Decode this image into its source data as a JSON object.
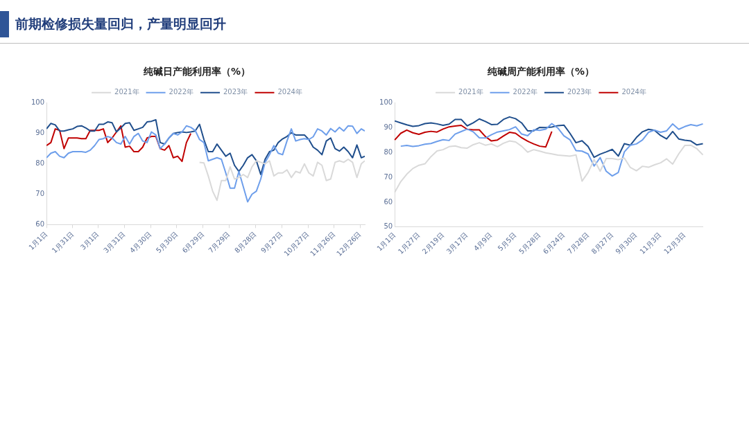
{
  "chart_data": [
    {
      "type": "other",
      "title": "前期检修损失量回归，产量明显回升"
    },
    {
      "type": "line",
      "title": "纯碱日产能利用率（%）",
      "legend": "top",
      "marker": "none",
      "grid": false,
      "x": [
        "--01-01",
        "--01-06",
        "--01-11",
        "--01-16",
        "--01-21",
        "--01-26",
        "--01-31",
        "--02-05",
        "--02-10",
        "--02-15",
        "--02-20",
        "--02-25",
        "--03-02",
        "--03-07",
        "--03-12",
        "--03-17",
        "--03-22",
        "--03-27",
        "--04-01",
        "--04-06",
        "--04-11",
        "--04-16",
        "--04-21",
        "--04-26",
        "--05-01",
        "--05-06",
        "--05-11",
        "--05-16",
        "--05-21",
        "--05-26",
        "--05-31",
        "--06-05",
        "--06-10",
        "--06-15",
        "--06-20",
        "--06-25",
        "--06-30",
        "--07-05",
        "--07-10",
        "--07-15",
        "--07-20",
        "--07-25",
        "--07-30",
        "--08-04",
        "--08-09",
        "--08-14",
        "--08-19",
        "--08-24",
        "--08-29",
        "--09-03",
        "--09-08",
        "--09-13",
        "--09-18",
        "--09-23",
        "--09-28",
        "--10-03",
        "--10-08",
        "--10-13",
        "--10-18",
        "--10-23",
        "--10-28",
        "--11-02",
        "--11-07",
        "--11-12",
        "--11-17",
        "--11-22",
        "--11-27",
        "--12-02",
        "--12-07",
        "--12-12",
        "--12-17",
        "--12-22",
        "--12-27",
        "--12-31"
      ],
      "xlim": [
        "--01-01",
        "--12-31"
      ],
      "xticks": [
        {
          "value": "--01-01",
          "label": "1月1日"
        },
        {
          "value": "--01-31",
          "label": "1月31日"
        },
        {
          "value": "--03-01",
          "label": "3月1日"
        },
        {
          "value": "--03-31",
          "label": "3月31日"
        },
        {
          "value": "--04-30",
          "label": "4月30日"
        },
        {
          "value": "--05-30",
          "label": "5月30日"
        },
        {
          "value": "--06-29",
          "label": "6月29日"
        },
        {
          "value": "--07-29",
          "label": "7月29日"
        },
        {
          "value": "--08-28",
          "label": "8月28日"
        },
        {
          "value": "--09-27",
          "label": "9月27日"
        },
        {
          "value": "--10-27",
          "label": "10月27日"
        },
        {
          "value": "--11-26",
          "label": "11月26日"
        },
        {
          "value": "--12-26",
          "label": "12月26日"
        }
      ],
      "ylim": [
        60,
        100
      ],
      "yticks": [
        60,
        70,
        80,
        90,
        100
      ],
      "series": [
        {
          "name": "2021年",
          "color": "#d9d9d9",
          "values": [
            null,
            null,
            null,
            null,
            null,
            null,
            null,
            null,
            null,
            null,
            null,
            null,
            null,
            null,
            null,
            null,
            null,
            null,
            null,
            null,
            null,
            null,
            null,
            null,
            null,
            null,
            null,
            null,
            null,
            null,
            null,
            null,
            null,
            null,
            null,
            80.5,
            80.3,
            76.0,
            71.0,
            68.0,
            74.5,
            74.5,
            79.0,
            75.0,
            75.5,
            76.5,
            75.5,
            79.0,
            81.0,
            80.5,
            80.0,
            81.0,
            76.0,
            77.0,
            77.0,
            78.0,
            75.5,
            77.5,
            77.0,
            80.0,
            77.0,
            76.0,
            80.5,
            79.5,
            74.5,
            75.0,
            80.5,
            81.0,
            80.5,
            81.5,
            80.5,
            75.5,
            80.0,
            81.0
          ]
        },
        {
          "name": "2022年",
          "color": "#6d9eeb",
          "values": [
            82.0,
            83.5,
            84.0,
            82.5,
            82.0,
            83.5,
            84.0,
            84.0,
            84.0,
            83.8,
            84.5,
            86.0,
            88.0,
            88.3,
            89.0,
            88.5,
            87.0,
            86.5,
            89.0,
            86.5,
            89.0,
            90.0,
            87.5,
            87.0,
            90.5,
            89.5,
            85.0,
            86.5,
            88.5,
            90.0,
            89.5,
            90.5,
            92.5,
            92.0,
            91.0,
            88.0,
            87.0,
            81.0,
            81.5,
            82.0,
            81.5,
            77.0,
            72.0,
            72.0,
            77.5,
            72.5,
            67.5,
            70.0,
            71.0,
            75.0,
            80.5,
            83.0,
            86.0,
            83.5,
            83.0,
            87.5,
            91.5,
            87.5,
            88.0,
            88.3,
            88.0,
            88.9,
            91.5,
            90.8,
            89.5,
            91.6,
            90.5,
            92.0,
            90.8,
            92.5,
            92.4,
            90.0,
            91.5,
            90.8
          ]
        },
        {
          "name": "2023年",
          "color": "#1f4e8c",
          "values": [
            91.5,
            93.3,
            92.8,
            90.8,
            90.8,
            91.2,
            91.5,
            92.3,
            92.5,
            91.8,
            90.8,
            90.8,
            93.0,
            93.0,
            93.8,
            93.5,
            90.5,
            91.8,
            93.3,
            93.5,
            91.0,
            91.5,
            92.0,
            93.8,
            94.0,
            94.5,
            87.0,
            86.5,
            88.5,
            90.0,
            90.3,
            90.5,
            90.3,
            90.5,
            90.8,
            93.0,
            88.0,
            84.0,
            84.0,
            86.5,
            84.5,
            82.5,
            83.5,
            79.5,
            77.5,
            79.5,
            82.0,
            83.0,
            81.0,
            76.5,
            81.5,
            84.0,
            84.5,
            87.0,
            88.2,
            89.0,
            90.2,
            89.5,
            89.5,
            89.5,
            88.0,
            85.5,
            84.5,
            83.0,
            87.5,
            88.5,
            85.0,
            84.2,
            85.5,
            84.0,
            82.0,
            86.2,
            82.0,
            82.5
          ]
        },
        {
          "name": "2024年",
          "color": "#c00000",
          "values": [
            86.0,
            87.0,
            91.5,
            91.0,
            85.0,
            88.5,
            88.5,
            88.5,
            88.3,
            88.3,
            91.0,
            91.0,
            91.0,
            91.5,
            87.0,
            88.5,
            90.5,
            92.5,
            85.5,
            85.8,
            84.0,
            84.0,
            85.5,
            88.5,
            89.0,
            89.0,
            85.0,
            84.5,
            86.0,
            82.0,
            82.5,
            80.8,
            87.0,
            90.0,
            null,
            null,
            null,
            null,
            null,
            null,
            null,
            null,
            null,
            null,
            null,
            null,
            null,
            null,
            null,
            null,
            null,
            null,
            null,
            null,
            null,
            null,
            null,
            null,
            null,
            null,
            null,
            null,
            null,
            null,
            null,
            null,
            null,
            null,
            null,
            null,
            null,
            null,
            null,
            null
          ]
        }
      ]
    },
    {
      "type": "line",
      "title": "纯碱周产能利用率（%）",
      "legend": "top",
      "marker": "none",
      "grid": false,
      "categories": [
        "1月1日",
        null,
        null,
        null,
        "1月27日",
        null,
        null,
        null,
        "2月19日",
        null,
        null,
        null,
        "3月17日",
        null,
        null,
        null,
        "4月9日",
        null,
        null,
        null,
        "5月5日",
        null,
        null,
        null,
        "5月28日",
        null,
        null,
        null,
        "6月24日",
        null,
        null,
        null,
        "7月28日",
        null,
        null,
        null,
        "8月27日",
        null,
        null,
        null,
        "9月30日",
        null,
        null,
        null,
        "11月3日",
        null,
        null,
        null,
        "12月3日",
        null,
        null,
        null
      ],
      "ylim": [
        50,
        100
      ],
      "yticks": [
        50,
        60,
        70,
        80,
        90,
        100
      ],
      "series": [
        {
          "name": "2021年",
          "color": "#d9d9d9",
          "values": [
            64.0,
            68.3,
            71.3,
            73.6,
            74.9,
            75.5,
            78.4,
            80.7,
            81.2,
            82.4,
            82.7,
            82.0,
            81.8,
            83.2,
            84.0,
            83.0,
            83.5,
            82.4,
            83.8,
            84.7,
            84.3,
            82.6,
            80.2,
            81.2,
            80.6,
            79.9,
            79.5,
            79.0,
            78.8,
            78.6,
            79.1,
            68.5,
            72.0,
            77.2,
            72.5,
            77.6,
            77.6,
            77.2,
            77.8,
            74.0,
            72.7,
            74.5,
            74.1,
            75.1,
            75.9,
            77.5,
            75.4,
            79.5,
            82.9,
            83.0,
            81.6,
            79.1
          ]
        },
        {
          "name": "2022年",
          "color": "#6d9eeb",
          "values": [
            null,
            82.6,
            82.9,
            82.5,
            82.8,
            83.4,
            83.7,
            84.5,
            85.2,
            84.9,
            87.5,
            88.5,
            89.5,
            88.4,
            86.0,
            85.9,
            87.2,
            88.3,
            88.8,
            89.3,
            90.4,
            87.5,
            86.8,
            89.2,
            89.0,
            89.5,
            91.7,
            89.9,
            86.8,
            85.2,
            80.8,
            80.6,
            79.5,
            74.6,
            78.0,
            72.5,
            70.6,
            72.0,
            80.3,
            83.0,
            83.5,
            85.1,
            88.2,
            89.1,
            88.2,
            88.8,
            91.6,
            89.4,
            90.5,
            91.3,
            90.8,
            91.6
          ]
        },
        {
          "name": "2023年",
          "color": "#1f4e8c",
          "values": [
            92.8,
            92.0,
            91.2,
            90.6,
            90.9,
            91.7,
            92.0,
            91.6,
            91.0,
            91.5,
            93.4,
            93.4,
            90.8,
            92.0,
            93.6,
            92.6,
            91.3,
            91.4,
            93.4,
            94.4,
            93.7,
            92.0,
            88.8,
            88.8,
            90.2,
            90.1,
            90.3,
            90.9,
            91.1,
            87.8,
            84.0,
            84.8,
            82.5,
            78.1,
            79.4,
            80.3,
            81.3,
            78.6,
            83.6,
            83.0,
            86.1,
            88.4,
            89.4,
            89.0,
            86.9,
            85.5,
            88.5,
            85.5,
            85.0,
            84.7,
            83.1,
            83.6
          ]
        },
        {
          "name": "2024年",
          "color": "#c00000",
          "values": [
            85.1,
            87.8,
            89.1,
            88.0,
            87.4,
            88.2,
            88.6,
            88.3,
            89.5,
            90.4,
            90.7,
            91.0,
            89.4,
            89.2,
            89.2,
            86.5,
            84.7,
            85.1,
            86.7,
            88.2,
            87.8,
            86.0,
            84.6,
            83.5,
            82.6,
            82.3,
            88.5,
            null,
            null,
            null,
            null,
            null,
            null,
            null,
            null,
            null,
            null,
            null,
            null,
            null,
            null,
            null,
            null,
            null,
            null,
            null,
            null,
            null,
            null,
            null,
            null,
            null
          ]
        }
      ]
    }
  ]
}
